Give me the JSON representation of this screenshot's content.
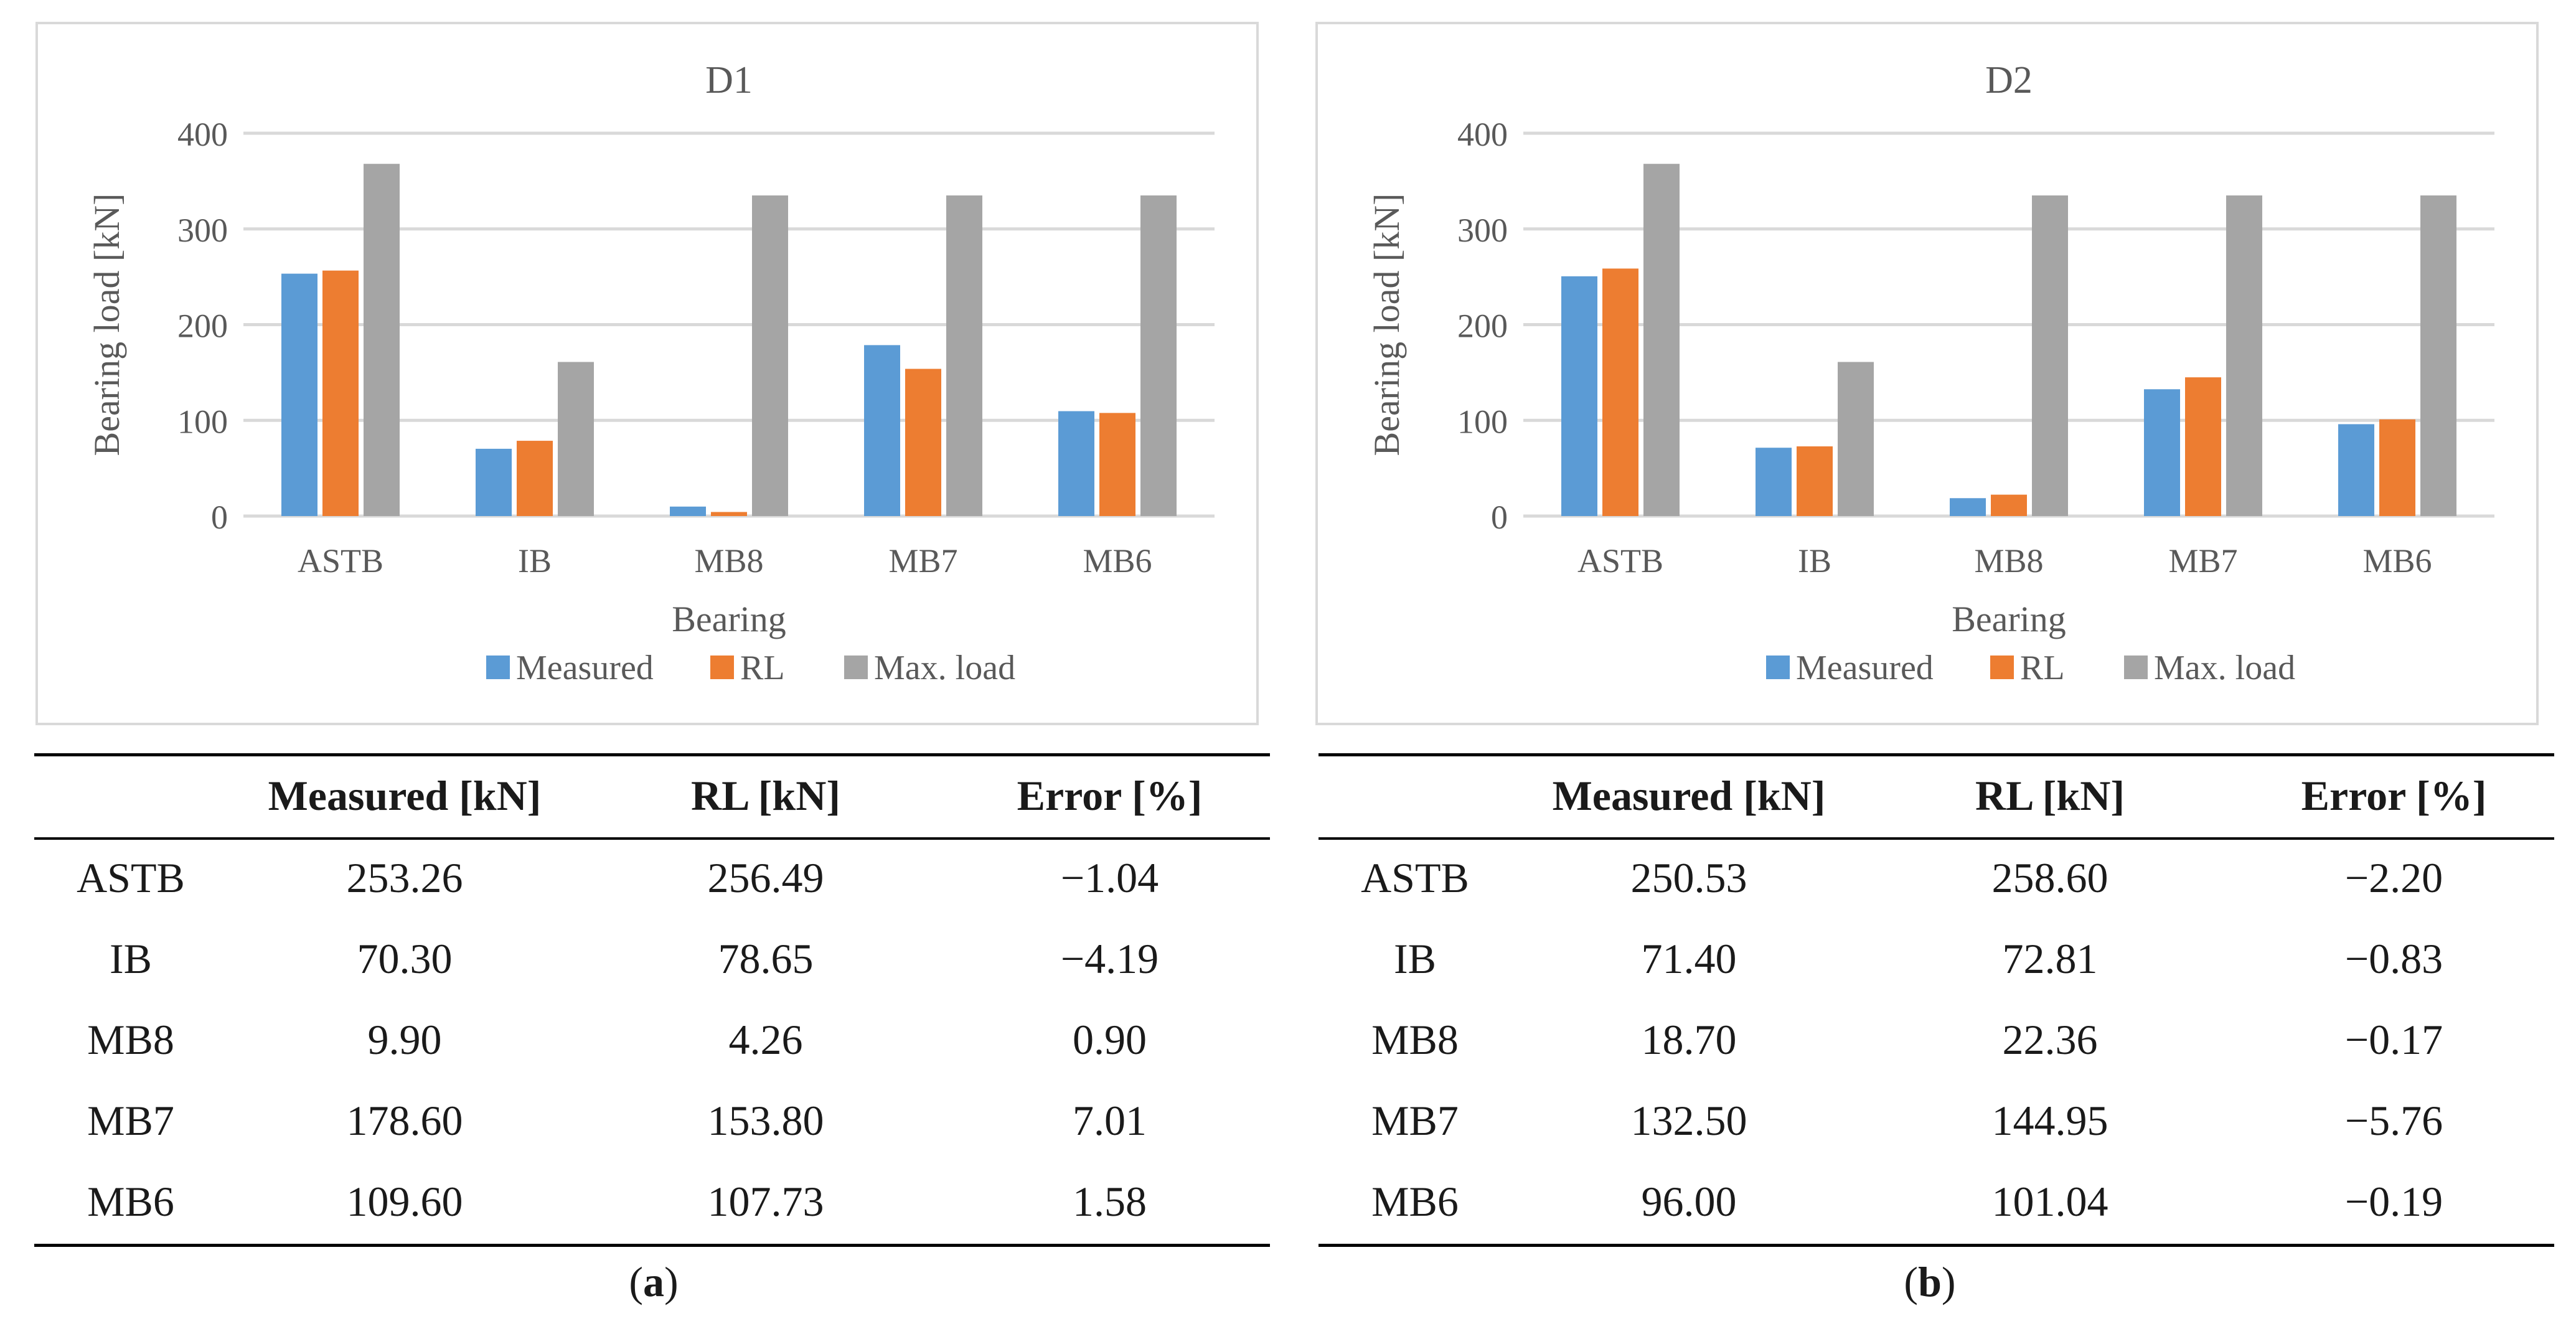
{
  "colors": {
    "measured": "#5b9bd5",
    "rl": "#ed7d31",
    "max": "#a5a5a5",
    "grid": "#d9d9d9",
    "text": "#595959"
  },
  "chart_data": [
    {
      "type": "bar",
      "title": "D1",
      "xlabel": "Bearing",
      "ylabel": "Bearing load [kN]",
      "ylim": [
        0,
        400
      ],
      "yticks": [
        0,
        100,
        200,
        300,
        400
      ],
      "categories": [
        "ASTB",
        "IB",
        "MB8",
        "MB7",
        "MB6"
      ],
      "series": [
        {
          "name": "Measured",
          "values": [
            253.26,
            70.3,
            9.9,
            178.6,
            109.6
          ]
        },
        {
          "name": "RL",
          "values": [
            256.49,
            78.65,
            4.26,
            153.8,
            107.73
          ]
        },
        {
          "name": "Max. load",
          "values": [
            368,
            161,
            335,
            335,
            335
          ]
        }
      ],
      "legend": "bottom"
    },
    {
      "type": "bar",
      "title": "D2",
      "xlabel": "Bearing",
      "ylabel": "Bearing load [kN]",
      "ylim": [
        0,
        400
      ],
      "yticks": [
        0,
        100,
        200,
        300,
        400
      ],
      "categories": [
        "ASTB",
        "IB",
        "MB8",
        "MB7",
        "MB6"
      ],
      "series": [
        {
          "name": "Measured",
          "values": [
            250.53,
            71.4,
            18.7,
            132.5,
            96.0
          ]
        },
        {
          "name": "RL",
          "values": [
            258.6,
            72.81,
            22.36,
            144.95,
            101.04
          ]
        },
        {
          "name": "Max. load",
          "values": [
            368,
            161,
            335,
            335,
            335
          ]
        }
      ],
      "legend": "bottom"
    }
  ],
  "tables": [
    {
      "headers": [
        "",
        "Measured [kN]",
        "RL [kN]",
        "Error [%]"
      ],
      "rows": [
        [
          "ASTB",
          "253.26",
          "256.49",
          "−1.04"
        ],
        [
          "IB",
          "70.30",
          "78.65",
          "−4.19"
        ],
        [
          "MB8",
          "9.90",
          "4.26",
          "0.90"
        ],
        [
          "MB7",
          "178.60",
          "153.80",
          "7.01"
        ],
        [
          "MB6",
          "109.60",
          "107.73",
          "1.58"
        ]
      ]
    },
    {
      "headers": [
        "",
        "Measured [kN]",
        "RL [kN]",
        "Error [%]"
      ],
      "rows": [
        [
          "ASTB",
          "250.53",
          "258.60",
          "−2.20"
        ],
        [
          "IB",
          "71.40",
          "72.81",
          "−0.83"
        ],
        [
          "MB8",
          "18.70",
          "22.36",
          "−0.17"
        ],
        [
          "MB7",
          "132.50",
          "144.95",
          "−5.76"
        ],
        [
          "MB6",
          "96.00",
          "101.04",
          "−0.19"
        ]
      ]
    }
  ],
  "captions": [
    {
      "open": "(",
      "letter": "a",
      "close": ")"
    },
    {
      "open": "(",
      "letter": "b",
      "close": ")"
    }
  ]
}
